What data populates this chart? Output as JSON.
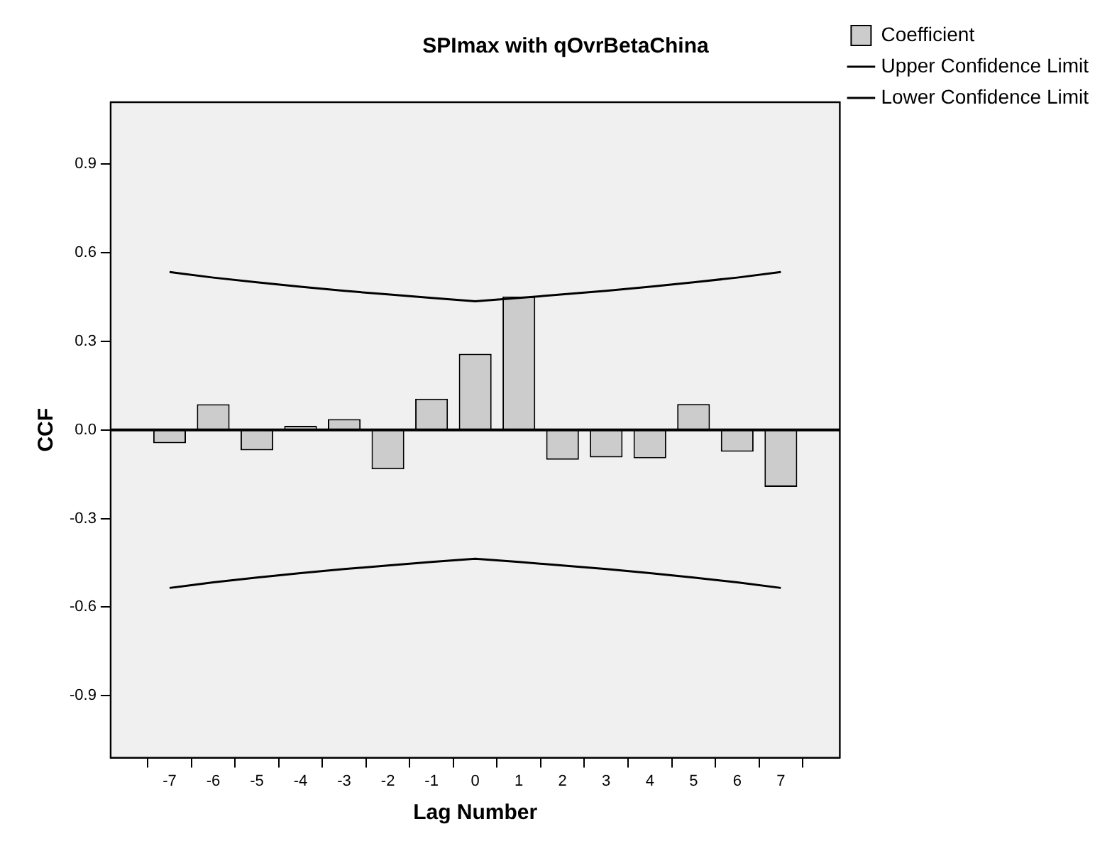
{
  "chart_data": {
    "type": "bar",
    "title": "SPImax with qOvrBetaChina",
    "xlabel": "Lag Number",
    "ylabel": "CCF",
    "x": [
      -7,
      -6,
      -5,
      -4,
      -3,
      -2,
      -1,
      0,
      1,
      2,
      3,
      4,
      5,
      6,
      7
    ],
    "series": [
      {
        "name": "Coefficient",
        "color": "#cccccc",
        "values": [
          -0.045,
          0.087,
          -0.069,
          0.014,
          0.037,
          -0.133,
          0.106,
          0.258,
          0.452,
          -0.101,
          -0.093,
          -0.096,
          0.088,
          -0.074,
          -0.193
        ]
      },
      {
        "name": "Upper Confidence Limit",
        "type": "line",
        "color": "#000000",
        "values": [
          0.535,
          0.516,
          0.5,
          0.485,
          0.471,
          0.459,
          0.447,
          0.436,
          0.447,
          0.459,
          0.471,
          0.485,
          0.5,
          0.516,
          0.535
        ]
      },
      {
        "name": "Lower Confidence Limit",
        "type": "line",
        "color": "#000000",
        "values": [
          -0.535,
          -0.516,
          -0.5,
          -0.485,
          -0.471,
          -0.459,
          -0.447,
          -0.436,
          -0.447,
          -0.459,
          -0.471,
          -0.485,
          -0.5,
          -0.516,
          -0.535
        ]
      }
    ],
    "xlim": [
      -8.35,
      8.35
    ],
    "xticks": [
      -7,
      -6,
      -5,
      -4,
      -3,
      -2,
      -1,
      0,
      1,
      2,
      3,
      4,
      5,
      6,
      7
    ],
    "ylim": [
      -1.11,
      1.11
    ],
    "yticks": [
      {
        "value": -0.9,
        "label": "-0.9"
      },
      {
        "value": -0.6,
        "label": "-0.6"
      },
      {
        "value": -0.3,
        "label": "-0.3"
      },
      {
        "value": 0,
        "label": "0.0"
      },
      {
        "value": 0.3,
        "label": "0.3"
      },
      {
        "value": 0.6,
        "label": "0.6"
      },
      {
        "value": 0.9,
        "label": "0.9"
      }
    ],
    "ref_lines": [
      {
        "axis": "y",
        "value": 0,
        "color": "#000000"
      }
    ],
    "grid": false,
    "legend": "top right",
    "marker": "none",
    "line_style": "solid"
  }
}
